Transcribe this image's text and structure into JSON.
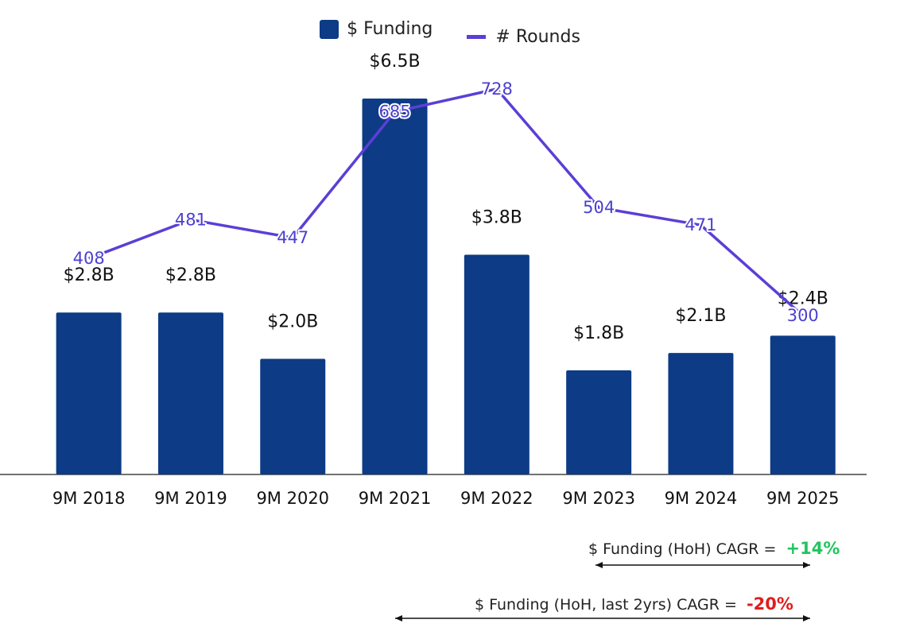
{
  "colors": {
    "bar": "#0d3b85",
    "line": "#5b3fd6",
    "label_line": "#4a3fd0",
    "positive": "#22c55e",
    "negative": "#e11d1d"
  },
  "legend": {
    "funding": "$ Funding",
    "rounds": "# Rounds"
  },
  "chart_data": {
    "type": "bar",
    "categories": [
      "9M 2018",
      "9M 2019",
      "9M 2020",
      "9M 2021",
      "9M 2022",
      "9M 2023",
      "9M 2024",
      "9M 2025"
    ],
    "series": [
      {
        "name": "$ Funding",
        "kind": "bar",
        "values": [
          2.8,
          2.8,
          2.0,
          6.5,
          3.8,
          1.8,
          2.1,
          2.4
        ],
        "labels": [
          "$2.8B",
          "$2.8B",
          "$2.0B",
          "$6.5B",
          "$3.8B",
          "$1.8B",
          "$2.1B",
          "$2.4B"
        ]
      },
      {
        "name": "# Rounds",
        "kind": "line",
        "values": [
          408,
          481,
          447,
          685,
          728,
          504,
          471,
          300
        ]
      }
    ],
    "y_funding_range": [
      0,
      6.5
    ],
    "y_rounds_range": [
      0,
      800
    ]
  },
  "annotations": {
    "cagr1_label": "$ Funding (HoH) CAGR =",
    "cagr1_value": "+14%",
    "cagr2_label": "$ Funding (HoH, last 2yrs) CAGR =",
    "cagr2_value": "-20%"
  }
}
